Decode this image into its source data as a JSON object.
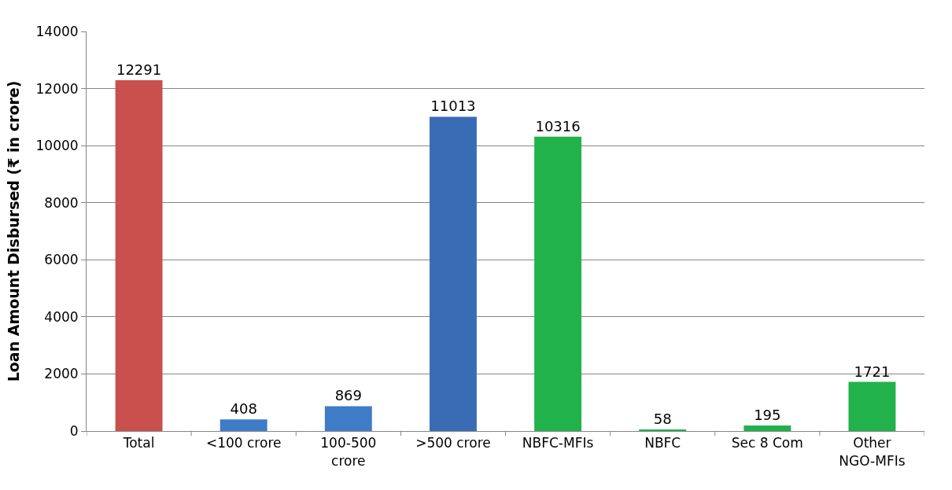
{
  "chart_data": {
    "type": "bar",
    "ylabel": "Loan Amount Disbursed (₹ in crore)",
    "categories": [
      "Total",
      "<100 crore",
      "100-500\ncrore",
      ">500 crore",
      "NBFC-MFIs",
      "NBFC",
      "Sec 8 Com",
      "Other\nNGO-MFIs"
    ],
    "values": [
      12291,
      408,
      869,
      11013,
      10316,
      58,
      195,
      1721
    ],
    "colors": [
      "#c9504d",
      "#3f7cc8",
      "#3f7cc8",
      "#3a6cb5",
      "#21b24b",
      "#21b24b",
      "#21b24b",
      "#21b24b"
    ],
    "ylim": [
      0,
      14000
    ],
    "yticks": [
      0,
      2000,
      4000,
      6000,
      8000,
      10000,
      12000,
      14000
    ],
    "grid": "y",
    "data_labels": true
  }
}
